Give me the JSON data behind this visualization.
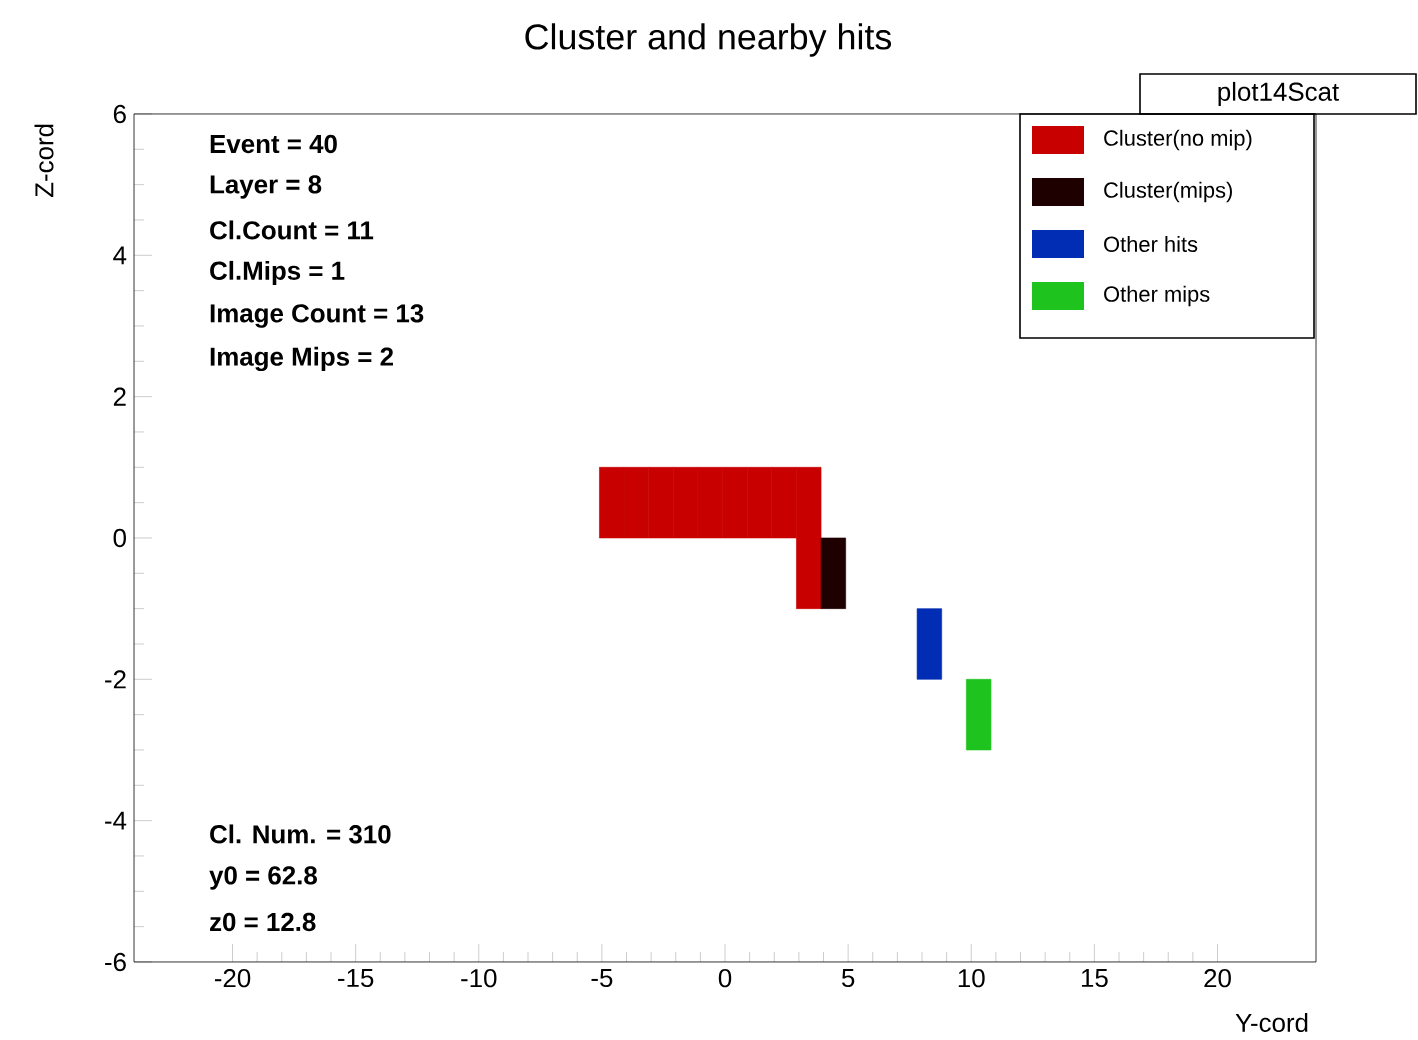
{
  "chart_data": {
    "type": "scatter",
    "title": "Cluster and nearby hits",
    "xlabel": "Y-cord",
    "ylabel": "Z-cord",
    "xlim": [
      -24,
      24
    ],
    "ylim": [
      -6,
      6
    ],
    "xticks": [
      -20,
      -15,
      -10,
      -5,
      0,
      5,
      10,
      15,
      20
    ],
    "yticks": [
      -6,
      -4,
      -2,
      0,
      2,
      4,
      6
    ],
    "marker": "square",
    "legend": "top right",
    "series": [
      {
        "name": "Cluster(no mip)",
        "color": "#c80000",
        "x": [
          -4.6,
          -3.6,
          -2.6,
          -1.6,
          -0.6,
          0.4,
          1.4,
          2.4,
          3.4,
          3.4
        ],
        "values": [
          0.5,
          0.5,
          0.5,
          0.5,
          0.5,
          0.5,
          0.5,
          0.5,
          0.5,
          -0.5
        ]
      },
      {
        "name": "Cluster(mips)",
        "color": "#1e0000",
        "x": [
          4.4
        ],
        "values": [
          -0.5
        ]
      },
      {
        "name": "Other hits",
        "color": "#002db4",
        "x": [
          8.3
        ],
        "values": [
          -1.5
        ]
      },
      {
        "name": "Other mips",
        "color": "#1ec31e",
        "x": [
          10.3
        ],
        "values": [
          -2.5
        ]
      }
    ],
    "annotations": [
      "plot14Scat",
      "Event = 40",
      "Layer = 8",
      "Cl.Count = 11",
      "Cl.Mips = 1",
      "Image Count = 13",
      "Image Mips = 2",
      "Cl. Num. = 310",
      "y0 = 62.8",
      "z0 = 12.8"
    ]
  }
}
